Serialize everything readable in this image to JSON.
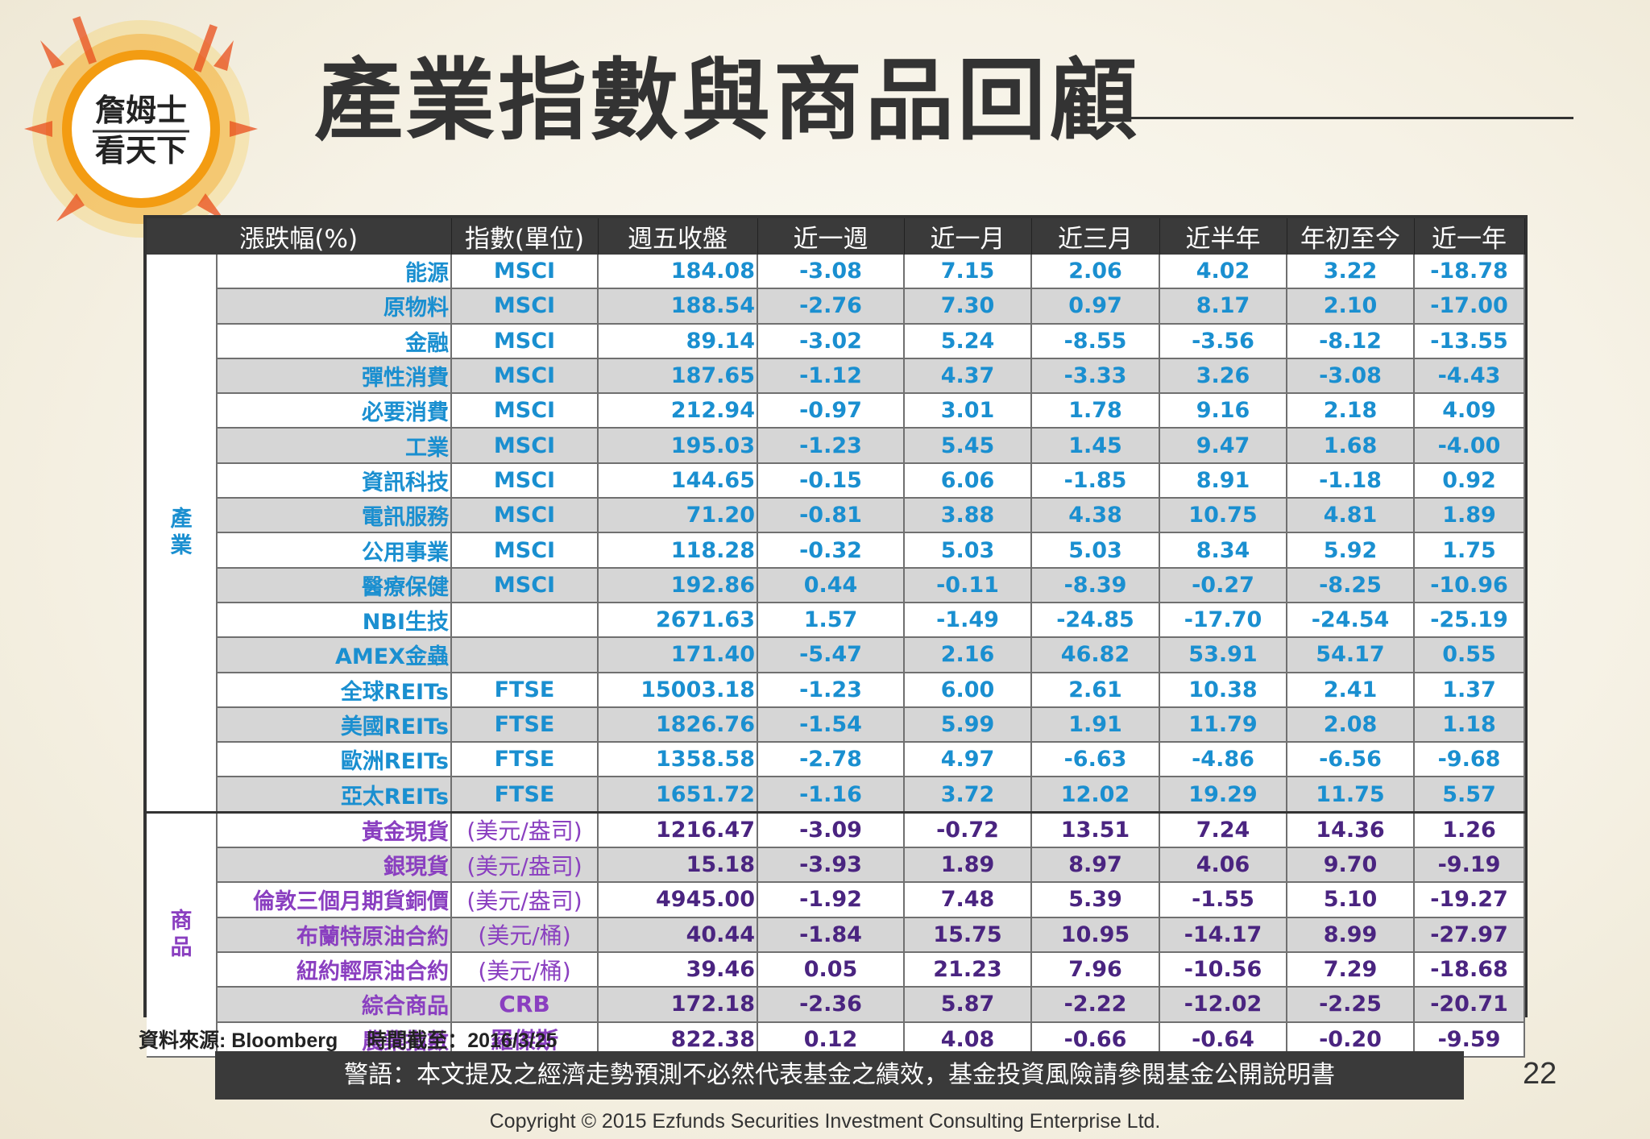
{
  "logo": {
    "line1": "詹姆士",
    "line2": "看天下"
  },
  "title": "產業指數與商品回顧",
  "table": {
    "headers": [
      "漲跌幅(%)",
      "指數(單位)",
      "週五收盤",
      "近一週",
      "近一月",
      "近三月",
      "近半年",
      "年初至今",
      "近一年"
    ],
    "industry_label": "產\n業",
    "commodity_label": "商\n品",
    "industry_rows": [
      {
        "name": "能源",
        "unit": "MSCI",
        "close": "184.08",
        "w1": "-3.08",
        "m1": "7.15",
        "m3": "2.06",
        "m6": "4.02",
        "ytd": "3.22",
        "y1": "-18.78"
      },
      {
        "name": "原物料",
        "unit": "MSCI",
        "close": "188.54",
        "w1": "-2.76",
        "m1": "7.30",
        "m3": "0.97",
        "m6": "8.17",
        "ytd": "2.10",
        "y1": "-17.00"
      },
      {
        "name": "金融",
        "unit": "MSCI",
        "close": "89.14",
        "w1": "-3.02",
        "m1": "5.24",
        "m3": "-8.55",
        "m6": "-3.56",
        "ytd": "-8.12",
        "y1": "-13.55"
      },
      {
        "name": "彈性消費",
        "unit": "MSCI",
        "close": "187.65",
        "w1": "-1.12",
        "m1": "4.37",
        "m3": "-3.33",
        "m6": "3.26",
        "ytd": "-3.08",
        "y1": "-4.43"
      },
      {
        "name": "必要消費",
        "unit": "MSCI",
        "close": "212.94",
        "w1": "-0.97",
        "m1": "3.01",
        "m3": "1.78",
        "m6": "9.16",
        "ytd": "2.18",
        "y1": "4.09"
      },
      {
        "name": "工業",
        "unit": "MSCI",
        "close": "195.03",
        "w1": "-1.23",
        "m1": "5.45",
        "m3": "1.45",
        "m6": "9.47",
        "ytd": "1.68",
        "y1": "-4.00"
      },
      {
        "name": "資訊科技",
        "unit": "MSCI",
        "close": "144.65",
        "w1": "-0.15",
        "m1": "6.06",
        "m3": "-1.85",
        "m6": "8.91",
        "ytd": "-1.18",
        "y1": "0.92"
      },
      {
        "name": "電訊服務",
        "unit": "MSCI",
        "close": "71.20",
        "w1": "-0.81",
        "m1": "3.88",
        "m3": "4.38",
        "m6": "10.75",
        "ytd": "4.81",
        "y1": "1.89"
      },
      {
        "name": "公用事業",
        "unit": "MSCI",
        "close": "118.28",
        "w1": "-0.32",
        "m1": "5.03",
        "m3": "5.03",
        "m6": "8.34",
        "ytd": "5.92",
        "y1": "1.75"
      },
      {
        "name": "醫療保健",
        "unit": "MSCI",
        "close": "192.86",
        "w1": "0.44",
        "m1": "-0.11",
        "m3": "-8.39",
        "m6": "-0.27",
        "ytd": "-8.25",
        "y1": "-10.96"
      },
      {
        "name": "NBI生技",
        "unit": "",
        "close": "2671.63",
        "w1": "1.57",
        "m1": "-1.49",
        "m3": "-24.85",
        "m6": "-17.70",
        "ytd": "-24.54",
        "y1": "-25.19"
      },
      {
        "name": "AMEX金蟲",
        "unit": "",
        "close": "171.40",
        "w1": "-5.47",
        "m1": "2.16",
        "m3": "46.82",
        "m6": "53.91",
        "ytd": "54.17",
        "y1": "0.55"
      },
      {
        "name": "全球REITs",
        "unit": "FTSE",
        "close": "15003.18",
        "w1": "-1.23",
        "m1": "6.00",
        "m3": "2.61",
        "m6": "10.38",
        "ytd": "2.41",
        "y1": "1.37"
      },
      {
        "name": "美國REITs",
        "unit": "FTSE",
        "close": "1826.76",
        "w1": "-1.54",
        "m1": "5.99",
        "m3": "1.91",
        "m6": "11.79",
        "ytd": "2.08",
        "y1": "1.18"
      },
      {
        "name": "歐洲REITs",
        "unit": "FTSE",
        "close": "1358.58",
        "w1": "-2.78",
        "m1": "4.97",
        "m3": "-6.63",
        "m6": "-4.86",
        "ytd": "-6.56",
        "y1": "-9.68"
      },
      {
        "name": "亞太REITs",
        "unit": "FTSE",
        "close": "1651.72",
        "w1": "-1.16",
        "m1": "3.72",
        "m3": "12.02",
        "m6": "19.29",
        "ytd": "11.75",
        "y1": "5.57"
      }
    ],
    "commodity_rows": [
      {
        "name": "黃金現貨",
        "unit": "(美元/盎司)",
        "close": "1216.47",
        "w1": "-3.09",
        "m1": "-0.72",
        "m3": "13.51",
        "m6": "7.24",
        "ytd": "14.36",
        "y1": "1.26"
      },
      {
        "name": "銀現貨",
        "unit": "(美元/盎司)",
        "close": "15.18",
        "w1": "-3.93",
        "m1": "1.89",
        "m3": "8.97",
        "m6": "4.06",
        "ytd": "9.70",
        "y1": "-9.19"
      },
      {
        "name": "倫敦三個月期貨銅價",
        "unit": "(美元/盎司)",
        "close": "4945.00",
        "w1": "-1.92",
        "m1": "7.48",
        "m3": "5.39",
        "m6": "-1.55",
        "ytd": "5.10",
        "y1": "-19.27"
      },
      {
        "name": "布蘭特原油合約",
        "unit": "(美元/桶)",
        "close": "40.44",
        "w1": "-1.84",
        "m1": "15.75",
        "m3": "10.95",
        "m6": "-14.17",
        "ytd": "8.99",
        "y1": "-27.97"
      },
      {
        "name": "紐約輕原油合約",
        "unit": "(美元/桶)",
        "close": "39.46",
        "w1": "0.05",
        "m1": "21.23",
        "m3": "7.96",
        "m6": "-10.56",
        "ytd": "7.29",
        "y1": "-18.68"
      },
      {
        "name": "綜合商品",
        "unit": "CRB",
        "close": "172.18",
        "w1": "-2.36",
        "m1": "5.87",
        "m3": "-2.22",
        "m6": "-12.02",
        "ytd": "-2.25",
        "y1": "-20.71"
      },
      {
        "name": "農業指數",
        "unit": "羅傑斯",
        "close": "822.38",
        "w1": "0.12",
        "m1": "4.08",
        "m3": "-0.66",
        "m6": "-0.64",
        "ytd": "-0.20",
        "y1": "-9.59"
      }
    ]
  },
  "source": {
    "data_source": "資料來源: Bloomberg",
    "as_of": "時間截至：2016/3/25"
  },
  "warning": "警語：本文提及之經濟走勢預測不必然代表基金之績效，基金投資風險請參閱基金公開說明書",
  "page_number": "22",
  "copyright": "Copyright © 2015 Ezfunds Securities Investment Consulting Enterprise Ltd.",
  "colors": {
    "industry": "#1a8fd0",
    "commodity": "#8a3fc0",
    "header_bg": "#3a3a3a"
  }
}
